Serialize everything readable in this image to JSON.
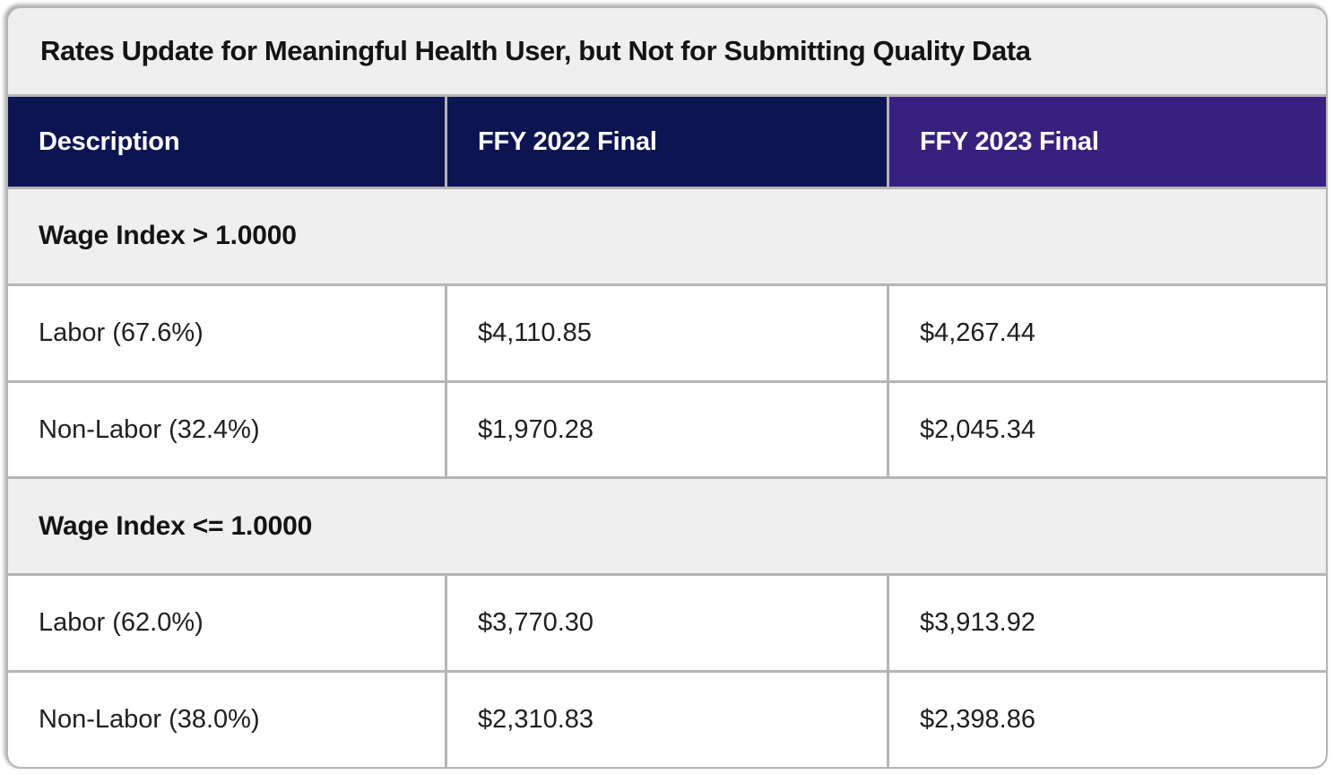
{
  "table": {
    "title": "Rates Update for Meaningful Health User, but Not for Submitting Quality Data",
    "columns": [
      "Description",
      "FFY 2022 Final",
      "FFY 2023 Final"
    ],
    "sections": [
      {
        "header": "Wage Index > 1.0000",
        "rows": [
          {
            "description": "Labor (67.6%)",
            "ffy2022": "$4,110.85",
            "ffy2023": "$4,267.44"
          },
          {
            "description": "Non-Labor (32.4%)",
            "ffy2022": "$1,970.28",
            "ffy2023": "$2,045.34"
          }
        ]
      },
      {
        "header": "Wage Index <= 1.0000",
        "rows": [
          {
            "description": "Labor (62.0%)",
            "ffy2022": "$3,770.30",
            "ffy2023": "$3,913.92"
          },
          {
            "description": "Non-Labor (38.0%)",
            "ffy2022": "$2,310.83",
            "ffy2023": "$2,398.86"
          }
        ]
      }
    ]
  },
  "chart_data": {
    "type": "table",
    "title": "Rates Update for Meaningful Health User, but Not for Submitting Quality Data",
    "columns": [
      "Description",
      "FFY 2022 Final",
      "FFY 2023 Final"
    ],
    "rows": [
      [
        "Wage Index > 1.0000",
        "",
        ""
      ],
      [
        "Labor (67.6%)",
        "$4,110.85",
        "$4,267.44"
      ],
      [
        "Non-Labor (32.4%)",
        "$1,970.28",
        "$2,045.34"
      ],
      [
        "Wage Index <= 1.0000",
        "",
        ""
      ],
      [
        "Labor (62.0%)",
        "$3,770.30",
        "$3,913.92"
      ],
      [
        "Non-Labor (38.0%)",
        "$2,310.83",
        "$2,398.86"
      ]
    ]
  },
  "colors": {
    "header_navy": "#0d1452",
    "header_purple": "#38217e",
    "section_bg": "#efefef",
    "row_bg": "#ffffff",
    "border": "#b5b5b5",
    "text_dark": "#141414",
    "text_body": "#1f1f1f",
    "text_light": "#ffffff"
  }
}
